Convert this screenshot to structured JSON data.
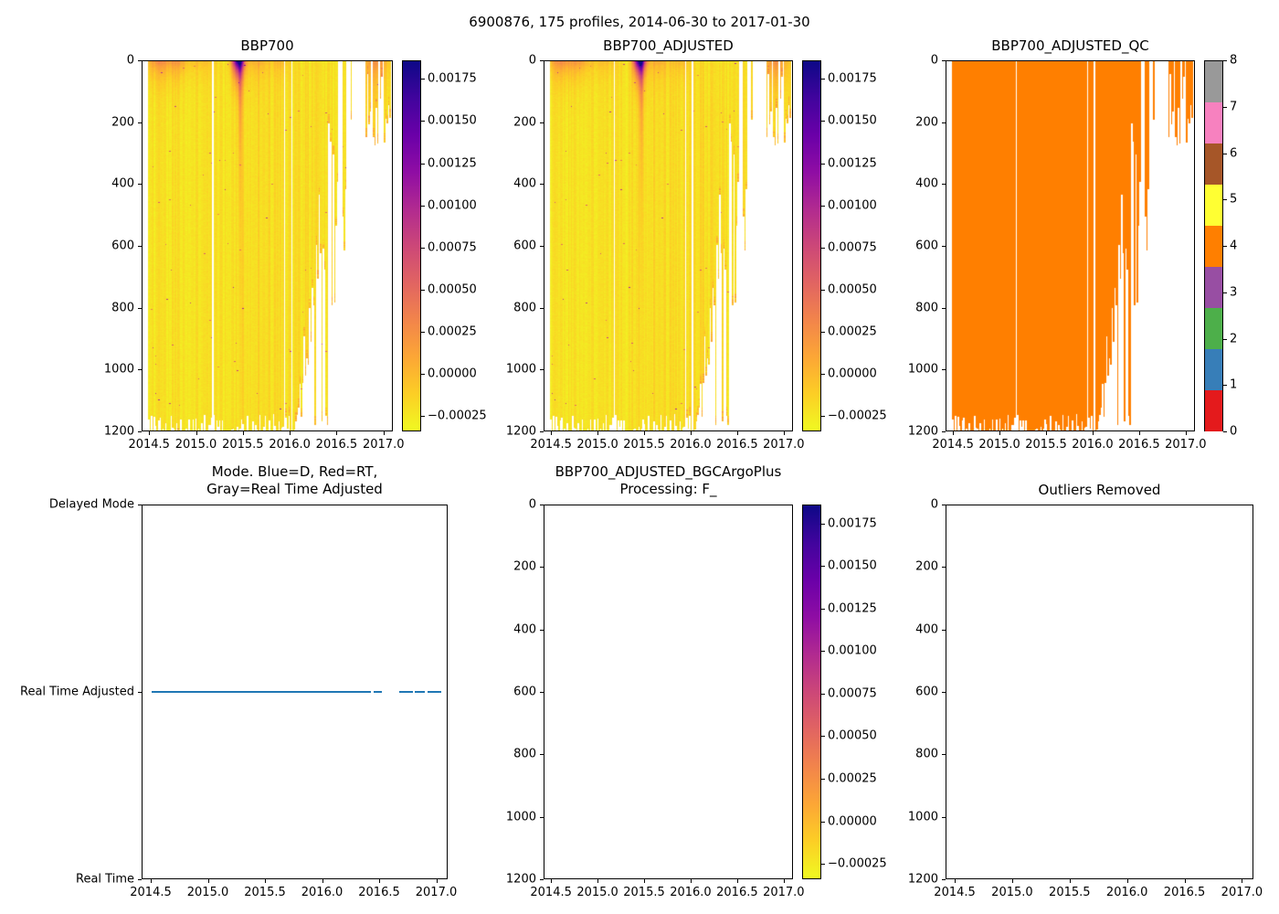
{
  "suptitle": "6900876, 175 profiles, 2014-06-30 to 2017-01-30",
  "colors": {
    "line_blue": "#1f77b4",
    "qc_present_orange": "#ff7f00",
    "plasma_r_top_to_bottom": [
      "#0d0887",
      "#41049d",
      "#6a00a8",
      "#8f0da4",
      "#b12a90",
      "#cc4778",
      "#e16462",
      "#f2844b",
      "#fca636",
      "#fcce25",
      "#f0f921"
    ],
    "set1_qc_colors_0_to_8": [
      "#e41a1c",
      "#377eb8",
      "#4daf4a",
      "#984ea3",
      "#ff7f00",
      "#ffff33",
      "#a65628",
      "#f781bf",
      "#999999"
    ]
  },
  "axis": {
    "x_tick_labels": [
      "2014.5",
      "2015.0",
      "2015.5",
      "2016.0",
      "2016.5",
      "2017.0"
    ],
    "x_tick_values": [
      2014.5,
      2015.0,
      2015.5,
      2016.0,
      2016.5,
      2017.0
    ],
    "x_range": [
      2014.42,
      2017.1
    ],
    "depth_tick_labels": [
      "0",
      "200",
      "400",
      "600",
      "800",
      "1000",
      "1200"
    ],
    "depth_tick_values": [
      0,
      200,
      400,
      600,
      800,
      1000,
      1200
    ],
    "depth_range": [
      0,
      1200
    ]
  },
  "colorbar_bbp": {
    "colormap": "plasma_r",
    "tick_labels": [
      "0.00175",
      "0.00150",
      "0.00125",
      "0.00100",
      "0.00075",
      "0.00050",
      "0.00025",
      "0.00000",
      "−0.00025"
    ],
    "tick_values": [
      0.00175,
      0.0015,
      0.00125,
      0.001,
      0.00075,
      0.0005,
      0.00025,
      0,
      -0.00025
    ],
    "vmin": -0.00034,
    "vmax": 0.00186
  },
  "colorbar_qc": {
    "colormap": "Set1 (9 discrete colors)",
    "tick_labels": [
      "0",
      "1",
      "2",
      "3",
      "4",
      "5",
      "6",
      "7",
      "8"
    ],
    "tick_values": [
      0,
      1,
      2,
      3,
      4,
      5,
      6,
      7,
      8
    ]
  },
  "chart_data": [
    {
      "type": "heatmap",
      "title": "BBP700",
      "x_range": [
        2014.42,
        2017.1
      ],
      "x_ticks": [
        2014.5,
        2015.0,
        2015.5,
        2016.0,
        2016.5,
        2017.0
      ],
      "y_range": [
        0,
        1200
      ],
      "y_ticks": [
        0,
        200,
        400,
        600,
        800,
        1000,
        1200
      ],
      "y_inverted": true,
      "colorbar": "colorbar_bbp",
      "n_profiles": 175,
      "t_first_profile": 2014.49,
      "t_last_profile": 2017.08,
      "value_seed": 0,
      "pattern": {
        "background_value": -0.00022,
        "noise_amp": 3e-05,
        "column_tint_amp": 6e-05,
        "surface_blooms": [
          {
            "t": 2014.6,
            "t_sigma": 0.1,
            "amp": 0.0005,
            "depth_scale": 45
          },
          {
            "t": 2014.8,
            "t_sigma": 0.07,
            "amp": 0.00035,
            "depth_scale": 40
          },
          {
            "t": 2015.05,
            "t_sigma": 0.12,
            "amp": 0.0002,
            "depth_scale": 40
          },
          {
            "t": 2015.45,
            "t_sigma": 0.045,
            "amp": 0.0021,
            "depth_scale": 40
          },
          {
            "t": 2015.47,
            "t_sigma": 0.015,
            "amp": 0.0006,
            "depth_scale": 280
          },
          {
            "t": 2015.65,
            "t_sigma": 0.09,
            "amp": 0.00028,
            "depth_scale": 45
          },
          {
            "t": 2015.9,
            "t_sigma": 0.07,
            "amp": 0.0002,
            "depth_scale": 40
          },
          {
            "t": 2016.93,
            "t_sigma": 0.09,
            "amp": 0.00045,
            "depth_scale": 70
          }
        ],
        "missing_columns": [
          2015.18,
          2015.95,
          2016.02
        ],
        "sparse_start": 2016.05,
        "sparse_end": 2016.5,
        "tail": {
          "full_until": 2016.62,
          "sparse_until": 2016.82,
          "cluster_until": 2017.08
        }
      }
    },
    {
      "type": "heatmap",
      "title": "BBP700_ADJUSTED",
      "x_range": [
        2014.42,
        2017.1
      ],
      "x_ticks": [
        2014.5,
        2015.0,
        2015.5,
        2016.0,
        2016.5,
        2017.0
      ],
      "y_range": [
        0,
        1200
      ],
      "y_ticks": [
        0,
        200,
        400,
        600,
        800,
        1000,
        1200
      ],
      "y_inverted": true,
      "colorbar": "colorbar_bbp",
      "n_profiles": 175,
      "t_first_profile": 2014.49,
      "t_last_profile": 2017.08,
      "value_seed": 4,
      "pattern_ref": 0
    },
    {
      "type": "heatmap",
      "title": "BBP700_ADJUSTED_QC",
      "x_range": [
        2014.42,
        2017.1
      ],
      "x_ticks": [
        2014.5,
        2015.0,
        2015.5,
        2016.0,
        2016.5,
        2017.0
      ],
      "y_range": [
        0,
        1200
      ],
      "y_ticks": [
        0,
        200,
        400,
        600,
        800,
        1000,
        1200
      ],
      "y_inverted": true,
      "colorbar": "colorbar_qc",
      "n_profiles": 175,
      "t_first_profile": 2014.49,
      "t_last_profile": 2017.08,
      "dominant_qc_value": 4,
      "qc_fill_color": "#ff7f00",
      "pattern_ref": 0
    },
    {
      "type": "line",
      "title_line1": "Mode. Blue=D, Red=RT,",
      "title_line2": "Gray=Real Time Adjusted",
      "x_range": [
        2014.42,
        2017.1
      ],
      "x_ticks": [
        2014.5,
        2015.0,
        2015.5,
        2016.0,
        2016.5,
        2017.0
      ],
      "y_categories_top_to_bottom": [
        "Delayed Mode",
        "Real Time Adjusted",
        "Real Time"
      ],
      "series": [
        {
          "name": "data-mode",
          "level": "Real Time Adjusted",
          "color": "#1f77b4",
          "segments": [
            [
              2014.5,
              2016.43
            ],
            [
              2016.46,
              2016.53
            ],
            [
              2016.68,
              2016.8
            ],
            [
              2016.82,
              2016.91
            ],
            [
              2016.93,
              2017.05
            ]
          ]
        }
      ]
    },
    {
      "type": "heatmap",
      "title_line1": "BBP700_ADJUSTED_BGCArgoPlus",
      "title_line2": "Processing: F_",
      "empty": true,
      "x_range": [
        2014.42,
        2017.1
      ],
      "x_ticks": [
        2014.5,
        2015.0,
        2015.5,
        2016.0,
        2016.5,
        2017.0
      ],
      "y_range": [
        0,
        1200
      ],
      "y_ticks": [
        0,
        200,
        400,
        600,
        800,
        1000,
        1200
      ],
      "y_inverted": true,
      "colorbar": "colorbar_bbp"
    },
    {
      "type": "heatmap",
      "title": "Outliers Removed",
      "empty": true,
      "x_range": [
        2014.42,
        2017.1
      ],
      "x_ticks": [
        2014.5,
        2015.0,
        2015.5,
        2016.0,
        2016.5,
        2017.0
      ],
      "y_range": [
        0,
        1200
      ],
      "y_ticks": [
        0,
        200,
        400,
        600,
        800,
        1000,
        1200
      ],
      "y_inverted": true,
      "colorbar": null
    }
  ]
}
